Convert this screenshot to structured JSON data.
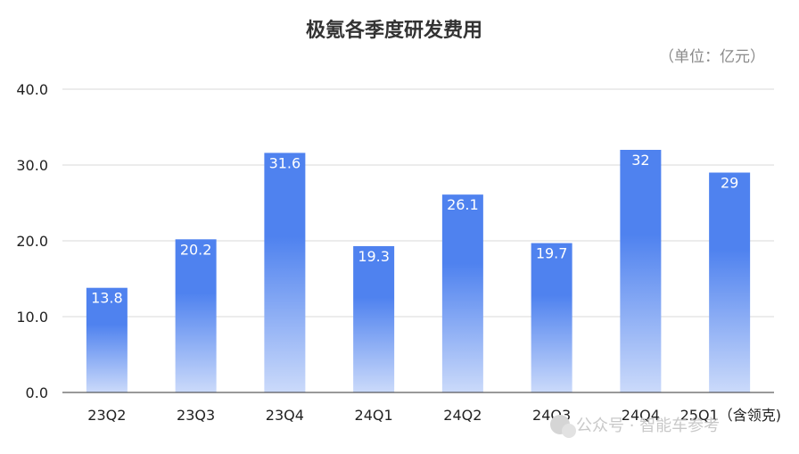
{
  "chart_data": {
    "type": "bar",
    "title": "极氪各季度研发费用",
    "unit_note": "（单位：亿元）",
    "categories": [
      "23Q2",
      "23Q3",
      "23Q4",
      "24Q1",
      "24Q2",
      "24Q3",
      "24Q4",
      "25Q1（含领克)"
    ],
    "values": [
      13.8,
      20.2,
      31.6,
      19.3,
      26.1,
      19.7,
      32,
      29
    ],
    "value_labels": [
      "13.8",
      "20.2",
      "31.6",
      "19.3",
      "26.1",
      "19.7",
      "32",
      "29"
    ],
    "yticks": [
      "0.0",
      "10.0",
      "20.0",
      "30.0",
      "40.0"
    ],
    "ylim": [
      0,
      40
    ],
    "grid": true,
    "legend": "none",
    "colors": {
      "bar_top": "#4f82ef",
      "bar_bottom": "#c9d8f9",
      "grid": "#d9d9d9",
      "axis": "#333333"
    }
  },
  "watermark": "公众号 · 智能车参考"
}
